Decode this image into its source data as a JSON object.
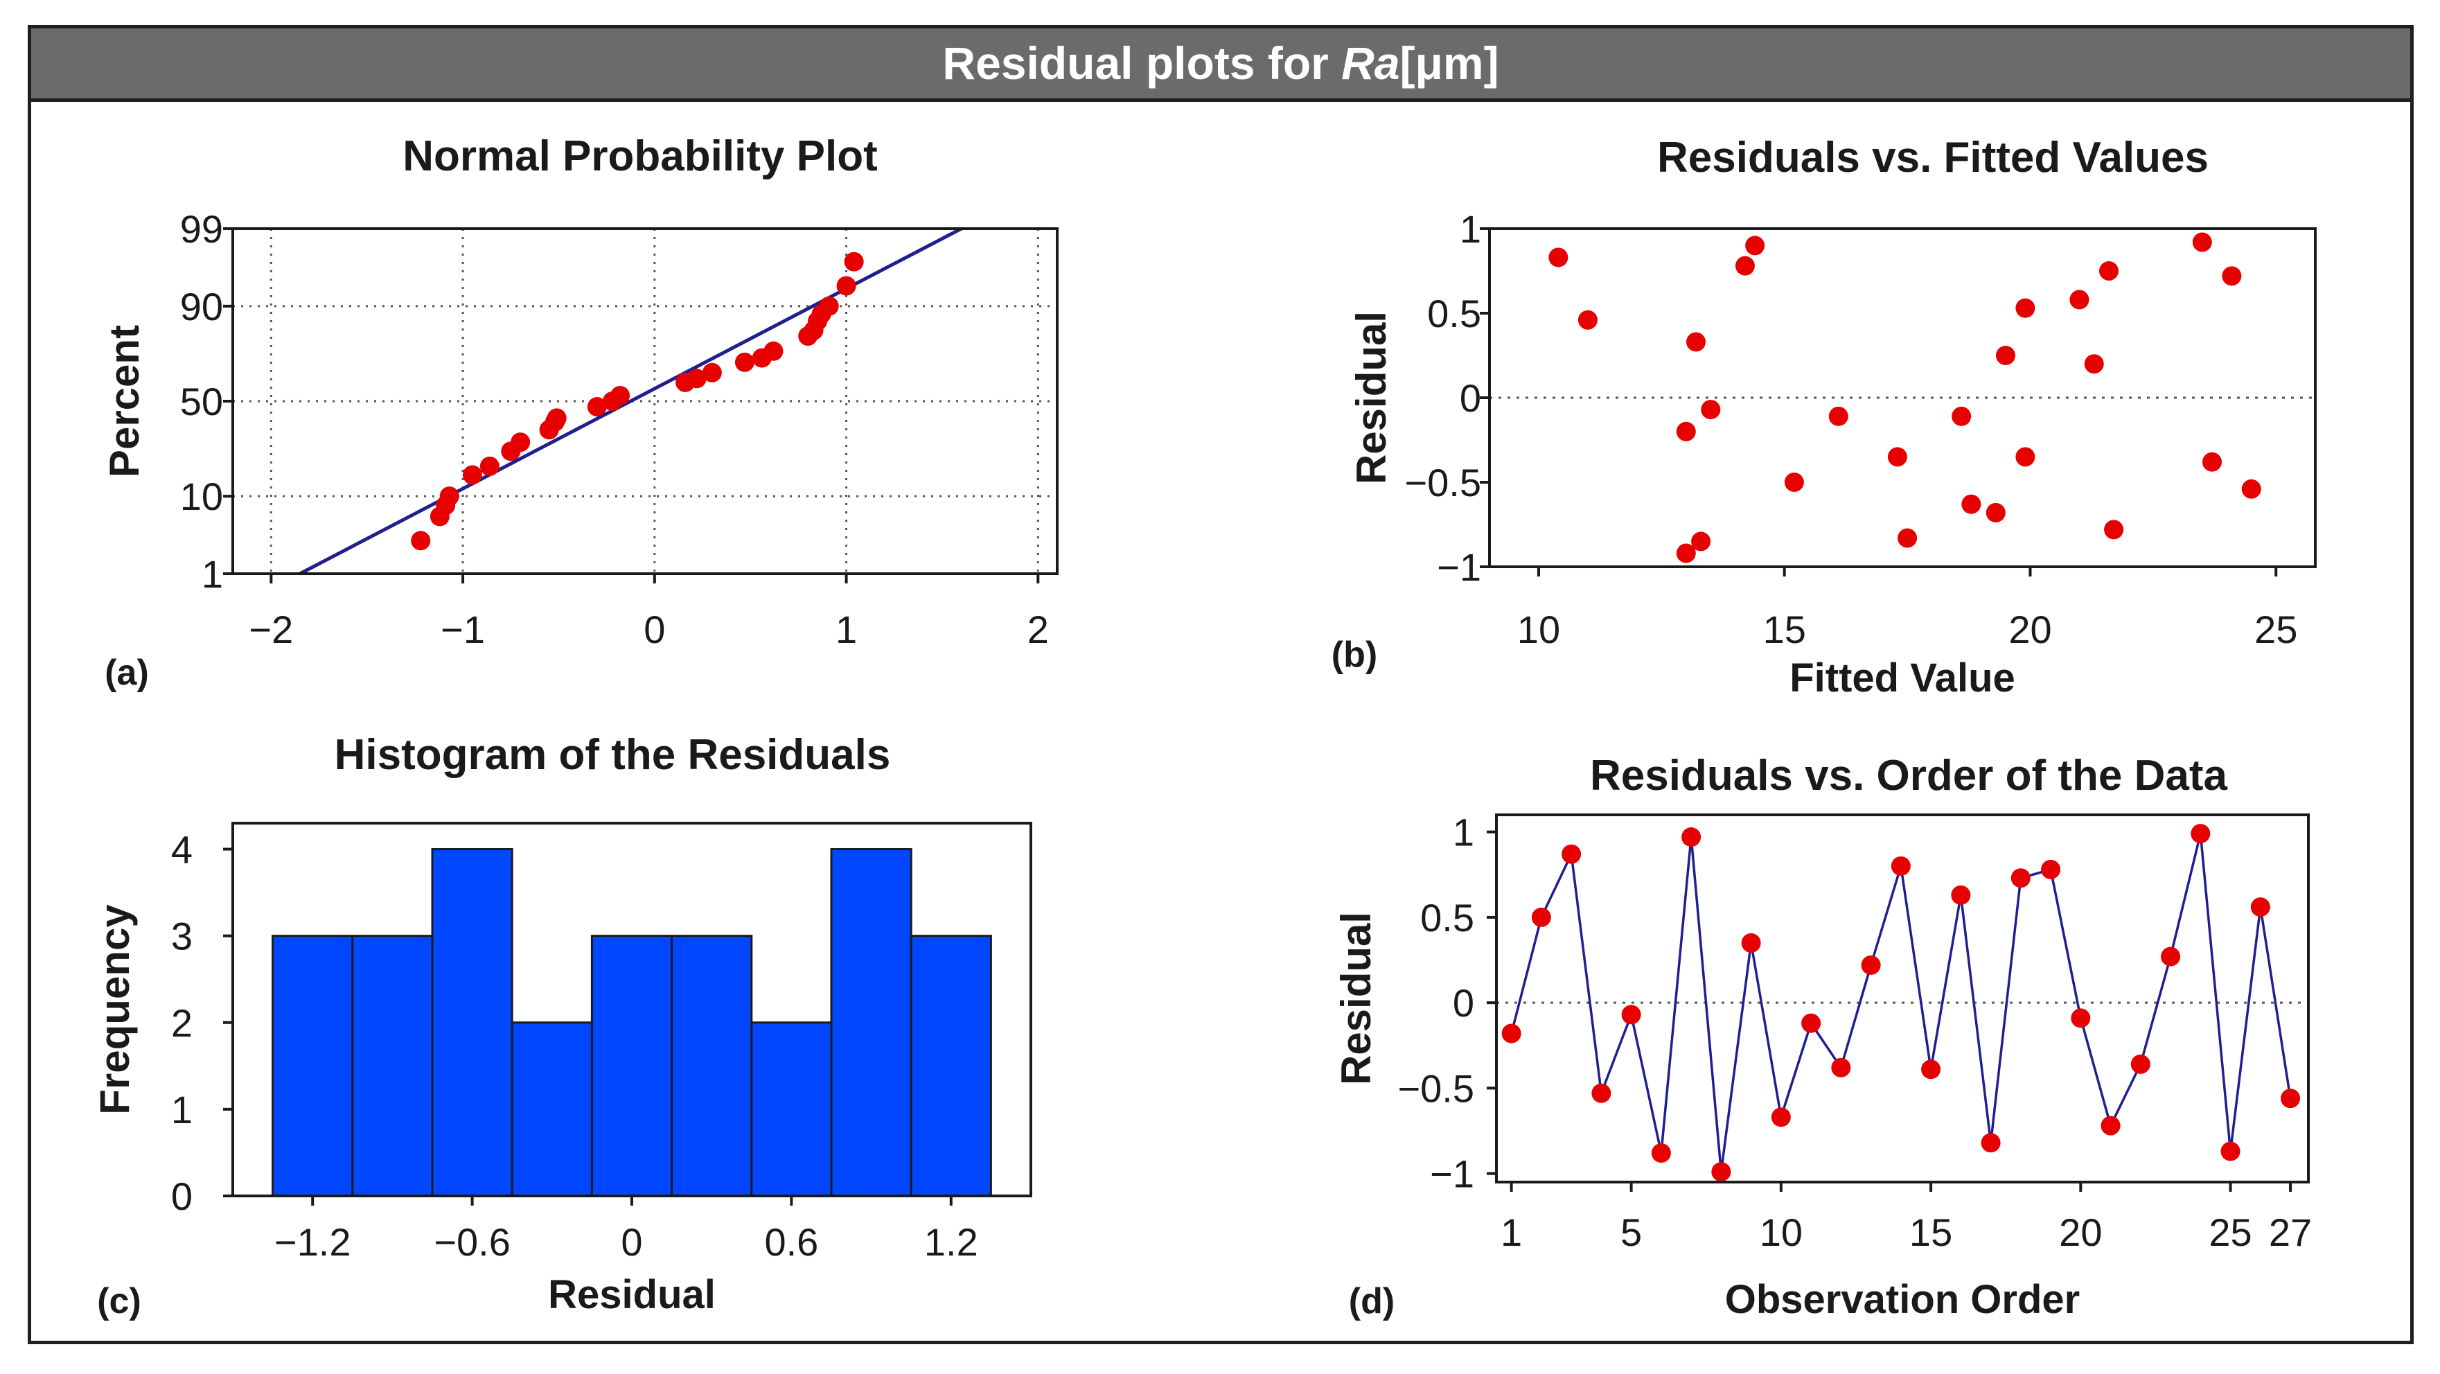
{
  "header": {
    "title_prefix": "Residual plots for ",
    "title_variable": "Ra",
    "title_unit": "[μm]"
  },
  "colors": {
    "point": "#e60000",
    "fit_line": "#1f1f8f",
    "bar_fill": "#0047ff",
    "axis": "#1a1a1a",
    "header_bg": "#6b6b6b"
  },
  "chart_data": [
    {
      "id": "a",
      "panel_label": "(a)",
      "type": "scatter",
      "title": "Normal Probability Plot",
      "xlabel": "",
      "ylabel": "Percent",
      "xlim": [
        -2.2,
        2.1
      ],
      "ylim": [
        1,
        99
      ],
      "x_ticks": [
        -2,
        -1,
        0,
        1,
        2
      ],
      "x_tick_labels": [
        "−2",
        "−1",
        "0",
        "1",
        "2"
      ],
      "y_ticks": [
        1,
        10,
        50,
        90,
        99
      ],
      "y_tick_labels": [
        "1",
        "10",
        "50",
        "90",
        "99"
      ],
      "y_scale": "normal-probability",
      "grid": "dotted",
      "fit_line": {
        "x": [
          -1.85,
          1.6
        ],
        "y": [
          1,
          99
        ]
      },
      "x": [
        -1.22,
        -1.12,
        -1.09,
        -1.07,
        -0.95,
        -0.86,
        -0.75,
        -0.7,
        -0.55,
        -0.52,
        -0.51,
        -0.3,
        -0.22,
        -0.18,
        0.16,
        0.22,
        0.3,
        0.47,
        0.56,
        0.62,
        0.8,
        0.83,
        0.85,
        0.87,
        0.91,
        1.0,
        1.04
      ],
      "y": [
        3,
        6,
        8,
        10,
        16,
        19,
        25,
        29,
        35,
        39,
        41,
        47,
        50,
        53,
        60,
        62,
        65,
        70,
        72,
        75,
        81,
        83,
        86,
        88,
        90,
        94,
        97
      ]
    },
    {
      "id": "b",
      "panel_label": "(b)",
      "type": "scatter",
      "title": "Residuals vs. Fitted Values",
      "xlabel": "Fitted Value",
      "ylabel": "Residual",
      "xlim": [
        9,
        25.8
      ],
      "ylim": [
        -1,
        1
      ],
      "x_ticks": [
        10,
        15,
        20,
        25
      ],
      "x_tick_labels": [
        "10",
        "15",
        "20",
        "25"
      ],
      "y_ticks": [
        -1,
        -0.5,
        0,
        0.5,
        1
      ],
      "y_tick_labels": [
        "−1",
        "−0.5",
        "0",
        "0.5",
        "1"
      ],
      "zero_line": "dotted",
      "x": [
        10.4,
        11.0,
        13.0,
        13.0,
        13.2,
        13.3,
        13.5,
        14.2,
        14.4,
        15.2,
        16.1,
        17.3,
        17.5,
        18.6,
        18.8,
        19.3,
        19.5,
        19.9,
        19.9,
        21.0,
        21.3,
        21.6,
        21.7,
        23.5,
        23.7,
        24.1,
        24.5
      ],
      "y": [
        0.83,
        0.46,
        -0.2,
        -0.92,
        0.33,
        -0.85,
        -0.07,
        0.78,
        0.9,
        -0.5,
        -0.11,
        -0.35,
        -0.83,
        -0.11,
        -0.63,
        -0.68,
        0.25,
        -0.35,
        0.53,
        0.58,
        0.2,
        0.75,
        -0.78,
        0.92,
        -0.38,
        0.72,
        -0.54
      ]
    },
    {
      "id": "c",
      "panel_label": "(c)",
      "type": "bar",
      "title": "Histogram of the Residuals",
      "xlabel": "Residual",
      "ylabel": "Frequency",
      "xlim": [
        -1.5,
        1.5
      ],
      "ylim": [
        0,
        4.3
      ],
      "x_ticks": [
        -1.2,
        -0.6,
        0,
        0.6,
        1.2
      ],
      "x_tick_labels": [
        "−1.2",
        "−0.6",
        "0",
        "0.6",
        "1.2"
      ],
      "y_ticks": [
        0,
        1,
        2,
        3,
        4
      ],
      "y_tick_labels": [
        "0",
        "1",
        "2",
        "3",
        "4"
      ],
      "bin_width": 0.3,
      "bin_centers": [
        -1.2,
        -0.9,
        -0.6,
        -0.3,
        0.0,
        0.3,
        0.6,
        0.9,
        1.2
      ],
      "values": [
        3,
        3,
        4,
        2,
        3,
        3,
        2,
        4,
        3
      ]
    },
    {
      "id": "d",
      "panel_label": "(d)",
      "type": "line",
      "title": "Residuals vs. Order of the Data",
      "xlabel": "Observation Order",
      "ylabel": "Residual",
      "xlim": [
        0.5,
        27.6
      ],
      "ylim": [
        -1.05,
        1.1
      ],
      "x_ticks": [
        1,
        5,
        10,
        15,
        20,
        25,
        27
      ],
      "x_tick_labels": [
        "1",
        "5",
        "10",
        "15",
        "20",
        "25",
        "27"
      ],
      "y_ticks": [
        -1,
        -0.5,
        0,
        0.5,
        1
      ],
      "y_tick_labels": [
        "−1",
        "−0.5",
        "0",
        "0.5",
        "1"
      ],
      "zero_line": "dotted",
      "x": [
        1,
        2,
        3,
        4,
        5,
        6,
        7,
        8,
        9,
        10,
        11,
        12,
        13,
        14,
        15,
        16,
        17,
        18,
        19,
        20,
        21,
        22,
        23,
        24,
        25,
        26,
        27
      ],
      "y": [
        -0.18,
        0.5,
        0.87,
        -0.53,
        -0.07,
        -0.88,
        0.97,
        -0.99,
        0.35,
        -0.67,
        -0.12,
        -0.38,
        0.22,
        0.8,
        -0.39,
        0.63,
        -0.82,
        0.73,
        0.78,
        -0.09,
        -0.72,
        -0.36,
        0.27,
        0.99,
        -0.87,
        0.56,
        -0.56
      ]
    }
  ]
}
